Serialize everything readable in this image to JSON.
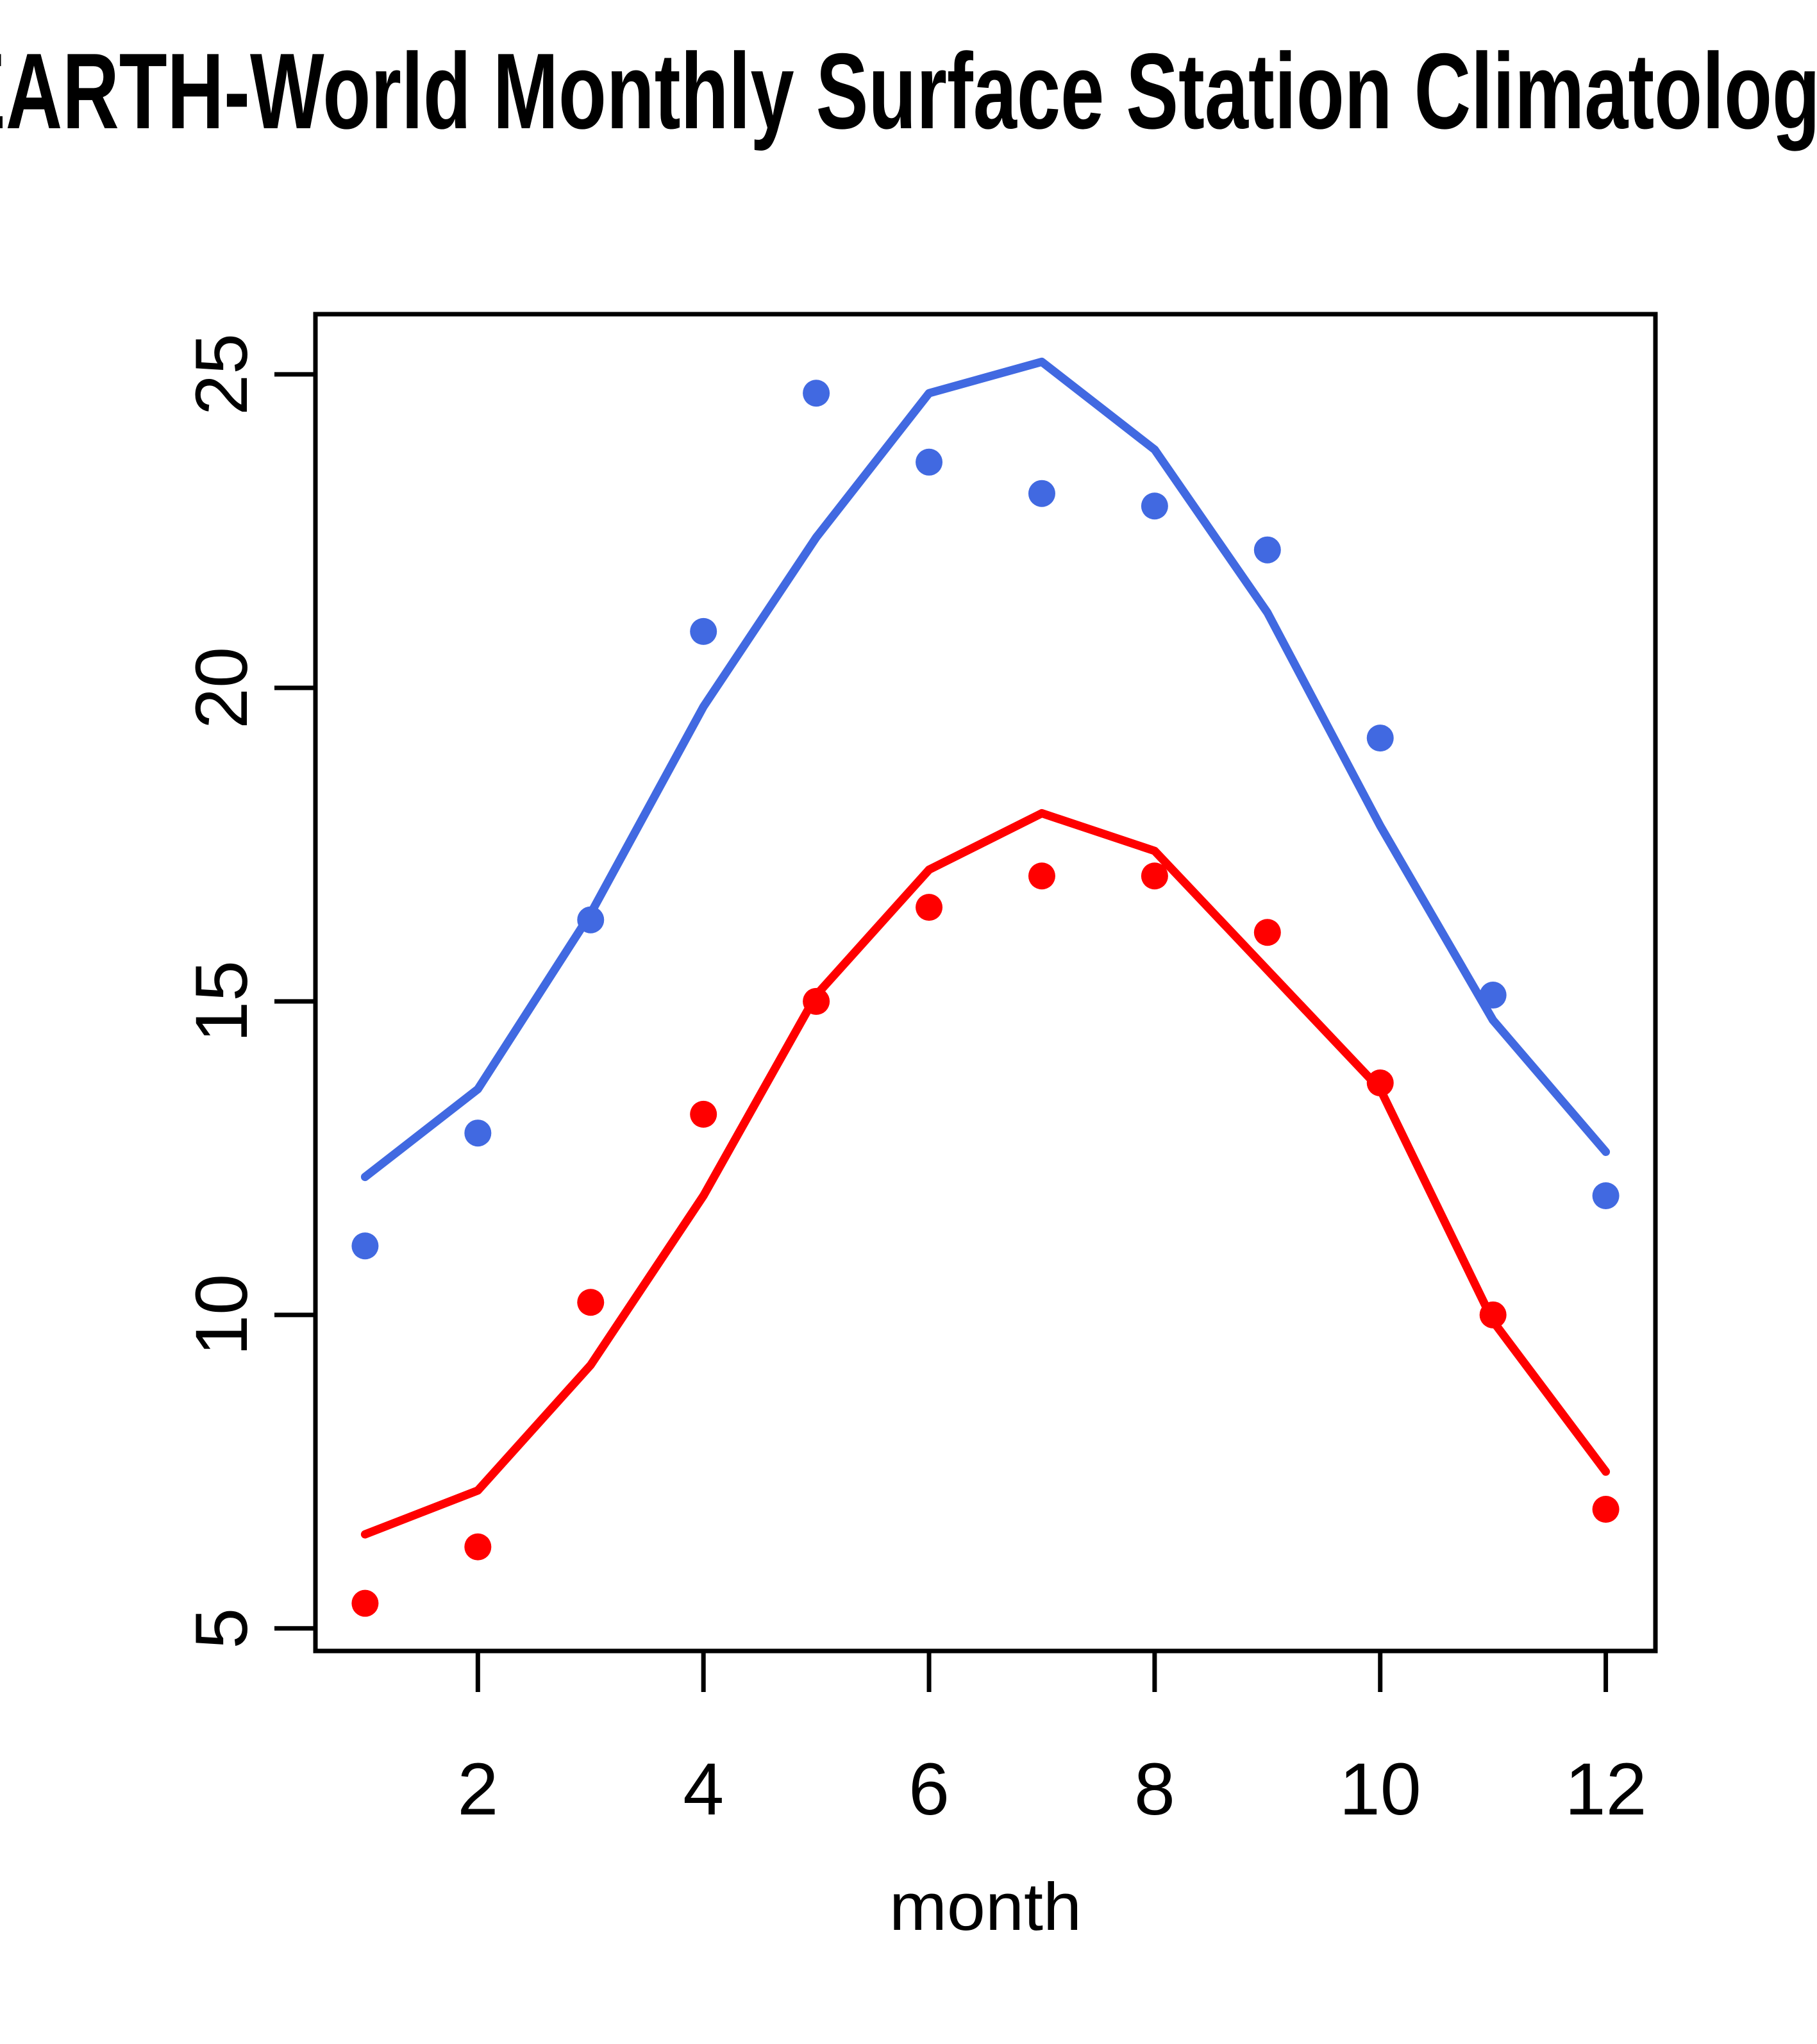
{
  "title": "EARTH-World Monthly Surface Station Climatology",
  "colors": {
    "upper_series": "#4169E1",
    "lower_series": "#FF0000",
    "axis": "#000000",
    "background": "#FFFFFF"
  },
  "chart_data": {
    "type": "line",
    "title": "EARTH-World Monthly Surface Station Climatology",
    "xlabel": "month",
    "ylabel": "",
    "x": [
      1,
      2,
      3,
      4,
      5,
      6,
      7,
      8,
      9,
      10,
      11,
      12
    ],
    "xticks": [
      2,
      4,
      6,
      8,
      10,
      12
    ],
    "yticks": [
      5,
      10,
      15,
      20,
      25
    ],
    "xlim": [
      0.56,
      12.44
    ],
    "ylim": [
      4.64,
      25.96
    ],
    "grid": false,
    "legend": "none",
    "series": [
      {
        "name": "upper-line",
        "type": "line",
        "color": "#4169E1",
        "values": [
          12.2,
          13.6,
          16.4,
          19.7,
          22.4,
          24.7,
          25.2,
          23.8,
          21.2,
          17.8,
          14.7,
          12.6
        ]
      },
      {
        "name": "upper-points",
        "type": "scatter",
        "color": "#4169E1",
        "values": [
          11.1,
          12.9,
          16.3,
          20.9,
          24.7,
          23.6,
          23.1,
          22.9,
          22.2,
          19.2,
          15.1,
          11.9
        ]
      },
      {
        "name": "lower-line",
        "type": "line",
        "color": "#FF0000",
        "values": [
          6.5,
          7.2,
          9.2,
          11.9,
          15.1,
          17.1,
          18.0,
          17.4,
          15.5,
          13.6,
          9.9,
          7.5
        ]
      },
      {
        "name": "lower-points",
        "type": "scatter",
        "color": "#FF0000",
        "values": [
          5.4,
          6.3,
          10.2,
          13.2,
          15.0,
          16.5,
          17.0,
          17.0,
          16.1,
          13.7,
          10.0,
          6.9
        ]
      }
    ]
  }
}
